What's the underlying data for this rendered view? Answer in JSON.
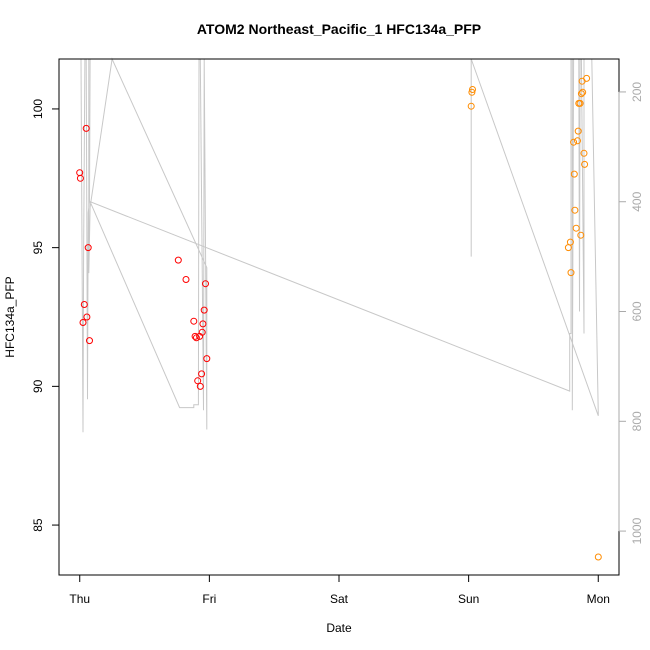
{
  "chart_data": {
    "type": "scatter",
    "title": "ATOM2 Northeast_Pacific_1 HFC134a_PFP",
    "xlabel": "Date",
    "ylabel": "HFC134a_PFP",
    "x_ticks": [
      {
        "day": 0,
        "label": "Thu"
      },
      {
        "day": 1,
        "label": "Fri"
      },
      {
        "day": 2,
        "label": "Sat"
      },
      {
        "day": 3,
        "label": "Sun"
      },
      {
        "day": 4,
        "label": "Mon"
      }
    ],
    "xlim": [
      -0.16,
      4.16
    ],
    "ylim": [
      83.2,
      101.8
    ],
    "y_ticks": [
      85,
      90,
      95,
      100
    ],
    "y2_ticks": [
      200,
      400,
      600,
      800,
      1000
    ],
    "y2lim": [
      1080,
      140
    ],
    "grid": false,
    "series": [
      {
        "color": "#ff0000",
        "points": [
          {
            "x": 0.0,
            "y": 97.7
          },
          {
            "x": 0.005,
            "y": 97.5
          },
          {
            "x": 0.025,
            "y": 92.3
          },
          {
            "x": 0.035,
            "y": 92.95
          },
          {
            "x": 0.05,
            "y": 99.3
          },
          {
            "x": 0.055,
            "y": 92.5
          },
          {
            "x": 0.065,
            "y": 95.0
          },
          {
            "x": 0.075,
            "y": 91.65
          },
          {
            "x": 0.76,
            "y": 94.55
          },
          {
            "x": 0.82,
            "y": 93.85
          },
          {
            "x": 0.88,
            "y": 92.35
          },
          {
            "x": 0.89,
            "y": 91.8
          },
          {
            "x": 0.9,
            "y": 91.75
          },
          {
            "x": 0.91,
            "y": 90.2
          },
          {
            "x": 0.925,
            "y": 91.8
          },
          {
            "x": 0.93,
            "y": 90.0
          },
          {
            "x": 0.94,
            "y": 90.45
          },
          {
            "x": 0.945,
            "y": 91.95
          },
          {
            "x": 0.95,
            "y": 92.25
          },
          {
            "x": 0.96,
            "y": 92.75
          },
          {
            "x": 0.97,
            "y": 93.7
          },
          {
            "x": 0.98,
            "y": 91.0
          }
        ]
      },
      {
        "color": "#ff8c00",
        "points": [
          {
            "x": 3.02,
            "y": 100.1
          },
          {
            "x": 3.025,
            "y": 100.6
          },
          {
            "x": 3.03,
            "y": 100.7
          },
          {
            "x": 3.77,
            "y": 95.0
          },
          {
            "x": 3.785,
            "y": 95.2
          },
          {
            "x": 3.79,
            "y": 94.1
          },
          {
            "x": 3.81,
            "y": 98.8
          },
          {
            "x": 3.815,
            "y": 97.65
          },
          {
            "x": 3.82,
            "y": 96.35
          },
          {
            "x": 3.83,
            "y": 95.7
          },
          {
            "x": 3.84,
            "y": 98.85
          },
          {
            "x": 3.845,
            "y": 99.2
          },
          {
            "x": 3.85,
            "y": 100.2
          },
          {
            "x": 3.86,
            "y": 100.2
          },
          {
            "x": 3.865,
            "y": 95.45
          },
          {
            "x": 3.87,
            "y": 100.55
          },
          {
            "x": 3.875,
            "y": 101.0
          },
          {
            "x": 3.88,
            "y": 100.6
          },
          {
            "x": 3.89,
            "y": 98.4
          },
          {
            "x": 3.895,
            "y": 98.0
          },
          {
            "x": 3.91,
            "y": 101.1
          },
          {
            "x": 4.0,
            "y": 83.85
          }
        ]
      }
    ],
    "secondary_line": {
      "color": "#c8c8c8",
      "axis": "right",
      "points": [
        {
          "x": 0.01,
          "y": 140
        },
        {
          "x": 0.025,
          "y": 820
        },
        {
          "x": 0.03,
          "y": 500
        },
        {
          "x": 0.04,
          "y": 140
        },
        {
          "x": 0.05,
          "y": 140
        },
        {
          "x": 0.06,
          "y": 760
        },
        {
          "x": 0.065,
          "y": 420
        },
        {
          "x": 0.075,
          "y": 400
        },
        {
          "x": 0.08,
          "y": 140
        },
        {
          "x": 0.07,
          "y": 140
        },
        {
          "x": 0.07,
          "y": 530
        },
        {
          "x": 0.08,
          "y": 410
        },
        {
          "x": 0.25,
          "y": 140
        },
        {
          "x": 0.98,
          "y": 520
        },
        {
          "x": 0.98,
          "y": 815
        },
        {
          "x": 0.96,
          "y": 140
        },
        {
          "x": 0.955,
          "y": 780
        },
        {
          "x": 0.93,
          "y": 140
        },
        {
          "x": 0.92,
          "y": 140
        },
        {
          "x": 0.915,
          "y": 770
        },
        {
          "x": 0.88,
          "y": 770
        },
        {
          "x": 0.88,
          "y": 775
        },
        {
          "x": 0.77,
          "y": 775
        },
        {
          "x": 0.08,
          "y": 400
        },
        {
          "x": 3.78,
          "y": 745
        },
        {
          "x": 3.78,
          "y": 640
        },
        {
          "x": 3.79,
          "y": 640
        },
        {
          "x": 3.79,
          "y": 140
        },
        {
          "x": 3.8,
          "y": 140
        },
        {
          "x": 3.8,
          "y": 780
        },
        {
          "x": 3.81,
          "y": 140
        },
        {
          "x": 3.83,
          "y": 140
        },
        {
          "x": 3.85,
          "y": 140
        },
        {
          "x": 3.855,
          "y": 600
        },
        {
          "x": 3.86,
          "y": 140
        },
        {
          "x": 3.87,
          "y": 140
        },
        {
          "x": 3.89,
          "y": 640
        },
        {
          "x": 3.89,
          "y": 140
        },
        {
          "x": 3.92,
          "y": 140
        },
        {
          "x": 3.95,
          "y": 140
        },
        {
          "x": 4.0,
          "y": 790
        },
        {
          "x": 3.02,
          "y": 140
        },
        {
          "x": 3.02,
          "y": 500
        }
      ]
    }
  }
}
